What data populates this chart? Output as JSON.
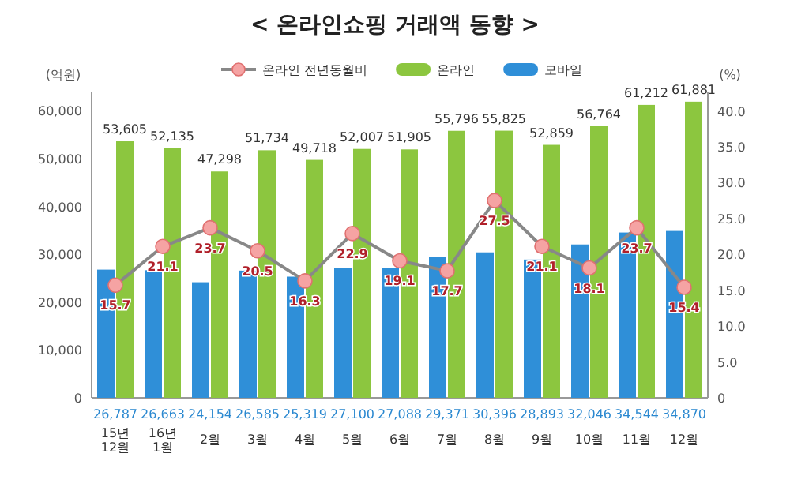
{
  "chart_data": {
    "type": "bar",
    "title": "< 온라인쇼핑 거래액 동향 >",
    "ylabel": "(억원)",
    "y2label": "(%)",
    "categories": [
      "15년 12월",
      "16년 1월",
      "2월",
      "3월",
      "4월",
      "5월",
      "6월",
      "7월",
      "8월",
      "9월",
      "10월",
      "11월",
      "12월"
    ],
    "series": [
      {
        "name": "모바일",
        "color": "#2f8fd8",
        "values": [
          26787,
          26663,
          24154,
          26585,
          25319,
          27100,
          27088,
          29371,
          30396,
          28893,
          32046,
          34544,
          34870
        ],
        "value_labels": [
          "26,787",
          "26,663",
          "24,154",
          "26,585",
          "25,319",
          "27,100",
          "27,088",
          "29,371",
          "30,396",
          "28,893",
          "32,046",
          "34,544",
          "34,870"
        ]
      },
      {
        "name": "온라인",
        "color": "#8cc63f",
        "values": [
          53605,
          52135,
          47298,
          51734,
          49718,
          52007,
          51905,
          55796,
          55825,
          52859,
          56764,
          61212,
          61881
        ],
        "value_labels": [
          "53,605",
          "52,135",
          "47,298",
          "51,734",
          "49,718",
          "52,007",
          "51,905",
          "55,796",
          "55,825",
          "52,859",
          "56,764",
          "61,212",
          "61,881"
        ]
      },
      {
        "name": "온라인 전년동월비",
        "type": "line",
        "axis": "y2",
        "color": "#888888",
        "values": [
          15.7,
          21.1,
          23.7,
          20.5,
          16.3,
          22.9,
          19.1,
          17.7,
          27.5,
          21.1,
          18.1,
          23.7,
          15.4
        ],
        "value_labels": [
          "15.7",
          "21.1",
          "23.7",
          "20.5",
          "16.3",
          "22.9",
          "19.1",
          "17.7",
          "27.5",
          "21.1",
          "18.1",
          "23.7",
          "15.4"
        ]
      }
    ],
    "ylim": [
      0,
      64000
    ],
    "yticks": [
      {
        "value": 0,
        "label": "0"
      },
      {
        "value": 10000,
        "label": "10,000"
      },
      {
        "value": 20000,
        "label": "20,000"
      },
      {
        "value": 30000,
        "label": "30,000"
      },
      {
        "value": 40000,
        "label": "40,000"
      },
      {
        "value": 50000,
        "label": "50,000"
      },
      {
        "value": 60000,
        "label": "60,000"
      }
    ],
    "y2lim": [
      0,
      42.7
    ],
    "y2ticks": [
      {
        "value": 0,
        "label": "0"
      },
      {
        "value": 5,
        "label": "5.0"
      },
      {
        "value": 10,
        "label": "10.0"
      },
      {
        "value": 15,
        "label": "15.0"
      },
      {
        "value": 20,
        "label": "20.0"
      },
      {
        "value": 25,
        "label": "25.0"
      },
      {
        "value": 30,
        "label": "30.0"
      },
      {
        "value": 35,
        "label": "35.0"
      },
      {
        "value": 40,
        "label": "40.0"
      }
    ],
    "marker": "circle",
    "legend": "top",
    "grid": false
  }
}
